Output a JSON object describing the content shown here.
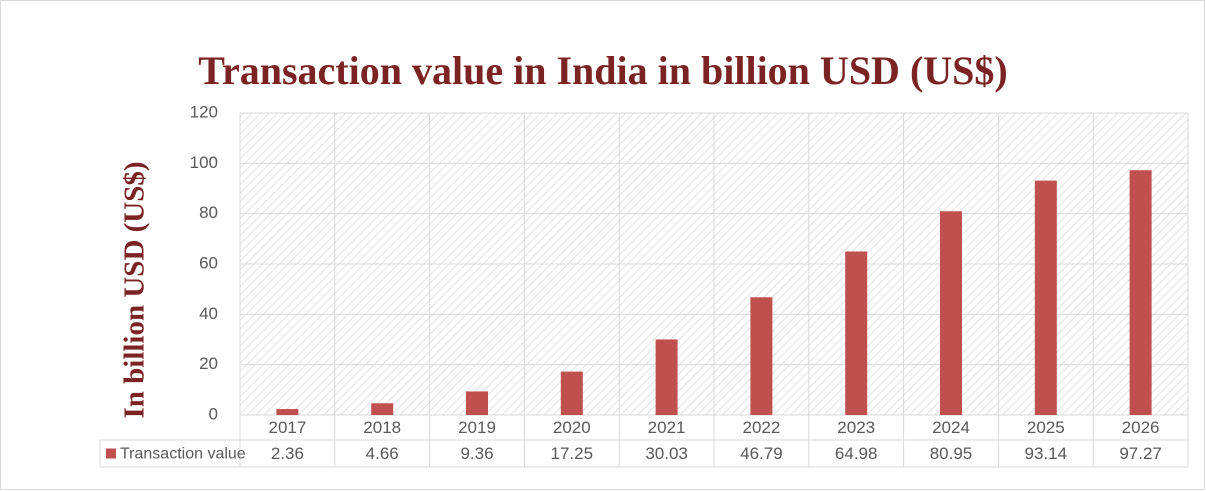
{
  "chart_data": {
    "type": "bar",
    "title": "Transaction value in India in billion USD (US$)",
    "y_label": "In billion USD (US$)",
    "categories": [
      "2017",
      "2018",
      "2019",
      "2020",
      "2021",
      "2022",
      "2023",
      "2024",
      "2025",
      "2026"
    ],
    "series": [
      {
        "name": "Transaction value",
        "color": "#c0504d",
        "values": [
          2.36,
          4.66,
          9.36,
          17.25,
          30.03,
          46.79,
          64.98,
          80.95,
          93.14,
          97.27
        ]
      }
    ],
    "ylim": [
      0,
      120
    ],
    "yticks": [
      0,
      20,
      40,
      60,
      80,
      100,
      120
    ],
    "grid": true,
    "data_table": true
  }
}
